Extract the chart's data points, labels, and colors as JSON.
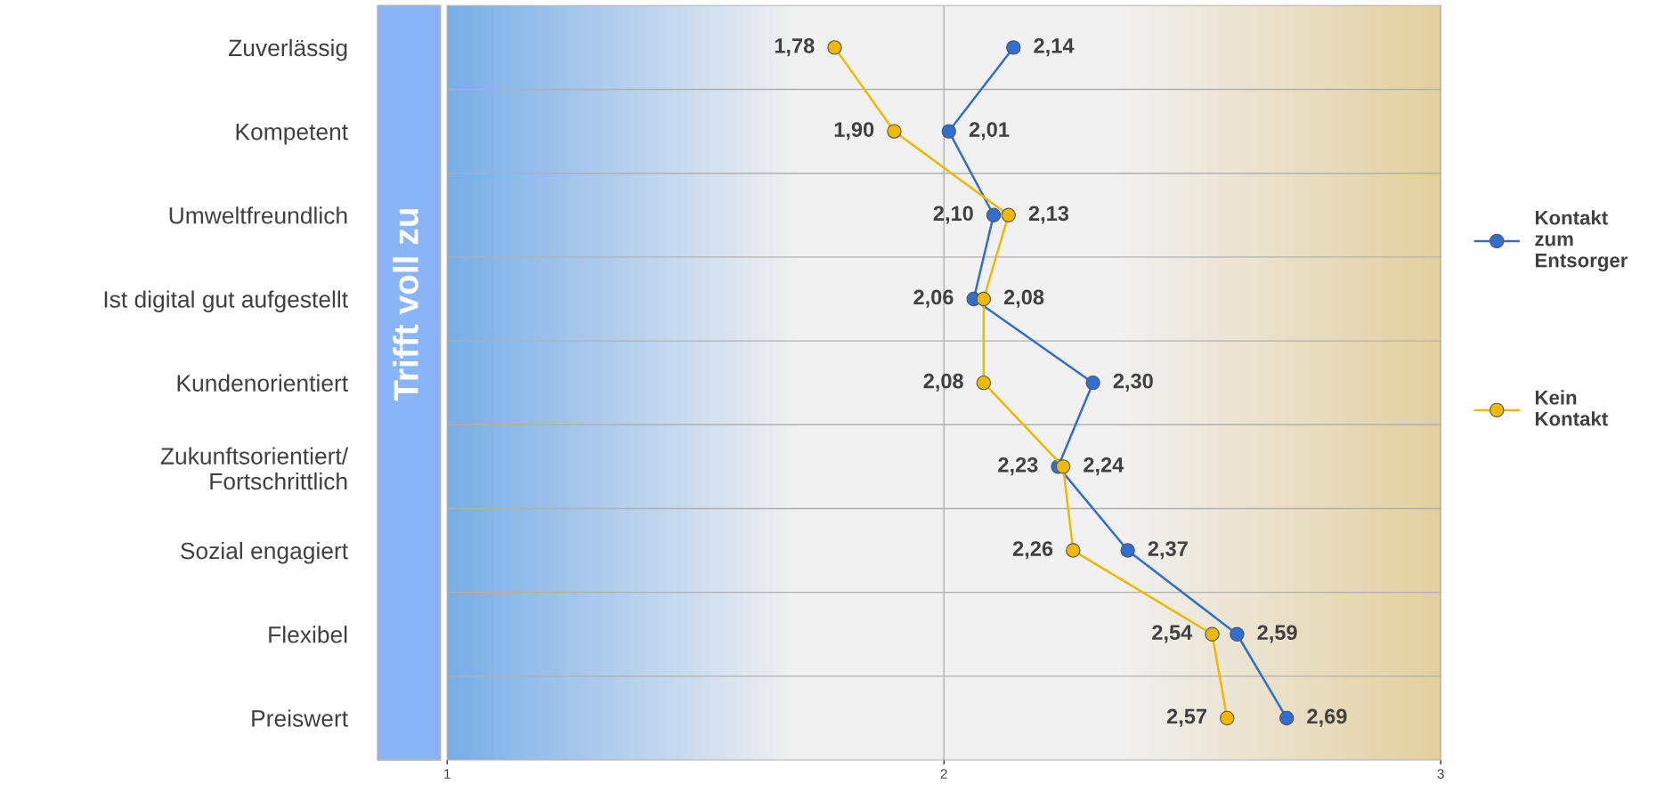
{
  "chart_data": {
    "type": "line",
    "orientation": "horizontal",
    "categories": [
      "Zuverlässig",
      "Kompetent",
      "Umweltfreundlich",
      "Ist digital gut aufgestellt",
      "Kundenorientiert",
      "Zukunftsorientiert/\nFortschrittlich",
      "Sozial engagiert",
      "Flexibel",
      "Preiswert"
    ],
    "series": [
      {
        "name": "Kontakt zum Entsorger",
        "color": "#2f6fd1",
        "values": [
          2.14,
          2.01,
          2.1,
          2.06,
          2.3,
          2.23,
          2.37,
          2.59,
          2.69
        ],
        "value_labels": [
          "2,14",
          "2,01",
          "2,10",
          "2,06",
          "2,30",
          "2,23",
          "2,37",
          "2,59",
          "2,69"
        ]
      },
      {
        "name": "Kein Kontakt",
        "color": "#f0b800",
        "values": [
          1.78,
          1.9,
          2.13,
          2.08,
          2.08,
          2.24,
          2.26,
          2.54,
          2.57
        ],
        "value_labels": [
          "1,78",
          "1,90",
          "2,13",
          "2,08",
          "2,08",
          "2,24",
          "2,26",
          "2,54",
          "2,57"
        ]
      }
    ],
    "xlim": [
      1,
      3
    ],
    "xticks": [
      1,
      2,
      3
    ],
    "grid": true,
    "legend": "right",
    "marker": "circle",
    "line_style": "solid",
    "annotations": [
      "Trifft voll zu"
    ]
  }
}
